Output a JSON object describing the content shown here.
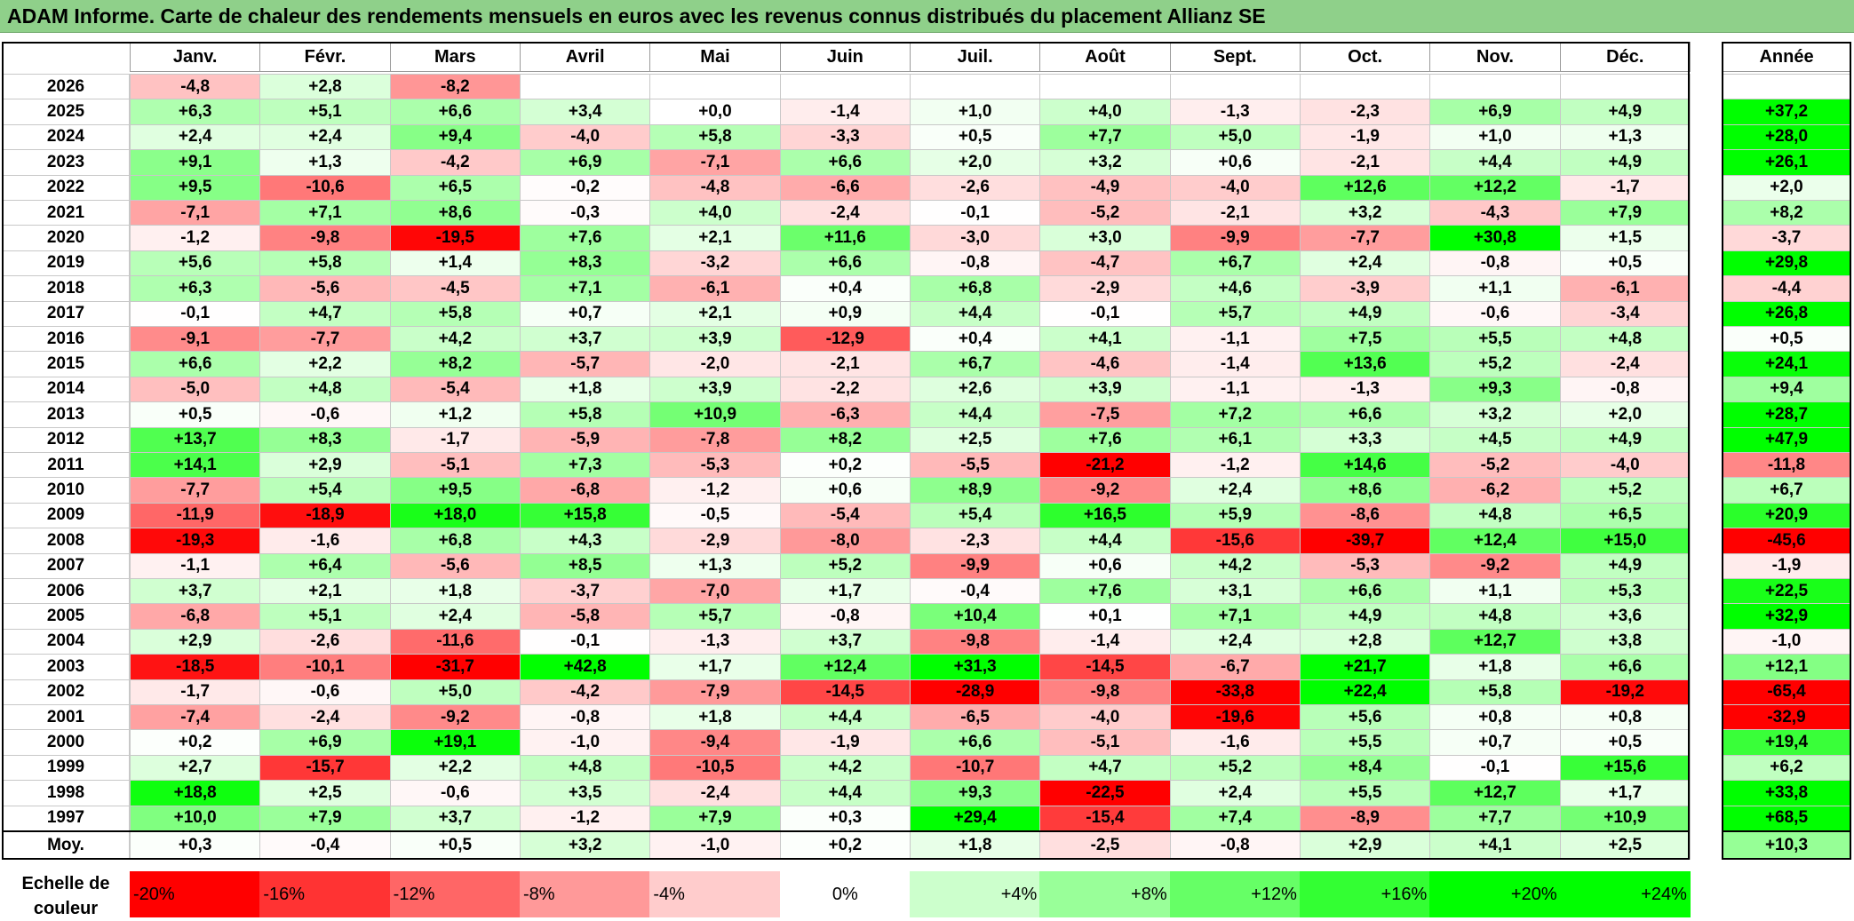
{
  "title": "ADAM Informe. Carte de chaleur des rendements mensuels en euros avec les revenus connus distribués du placement Allianz SE",
  "chart_data": {
    "type": "heatmap",
    "title": "ADAM Informe. Carte de chaleur des rendements mensuels en euros avec les revenus connus distribués du placement Allianz SE",
    "months": [
      "Janv.",
      "Févr.",
      "Mars",
      "Avril",
      "Mai",
      "Juin",
      "Juil.",
      "Août",
      "Sept.",
      "Oct.",
      "Nov.",
      "Déc."
    ],
    "annual_header": "Année",
    "rows": [
      {
        "year": "2026",
        "values": [
          "-4,8",
          "+2,8",
          "-8,2",
          "",
          "",
          "",
          "",
          "",
          "",
          "",
          "",
          ""
        ],
        "annual": ""
      },
      {
        "year": "2025",
        "values": [
          "+6,3",
          "+5,1",
          "+6,6",
          "+3,4",
          "+0,0",
          "-1,4",
          "+1,0",
          "+4,0",
          "-1,3",
          "-2,3",
          "+6,9",
          "+4,9"
        ],
        "annual": "+37,2"
      },
      {
        "year": "2024",
        "values": [
          "+2,4",
          "+2,4",
          "+9,4",
          "-4,0",
          "+5,8",
          "-3,3",
          "+0,5",
          "+7,7",
          "+5,0",
          "-1,9",
          "+1,0",
          "+1,3"
        ],
        "annual": "+28,0"
      },
      {
        "year": "2023",
        "values": [
          "+9,1",
          "+1,3",
          "-4,2",
          "+6,9",
          "-7,1",
          "+6,6",
          "+2,0",
          "+3,2",
          "+0,6",
          "-2,1",
          "+4,4",
          "+4,9"
        ],
        "annual": "+26,1"
      },
      {
        "year": "2022",
        "values": [
          "+9,5",
          "-10,6",
          "+6,5",
          "-0,2",
          "-4,8",
          "-6,6",
          "-2,6",
          "-4,9",
          "-4,0",
          "+12,6",
          "+12,2",
          "-1,7"
        ],
        "annual": "+2,0"
      },
      {
        "year": "2021",
        "values": [
          "-7,1",
          "+7,1",
          "+8,6",
          "-0,3",
          "+4,0",
          "-2,4",
          "-0,1",
          "-5,2",
          "-2,1",
          "+3,2",
          "-4,3",
          "+7,9"
        ],
        "annual": "+8,2"
      },
      {
        "year": "2020",
        "values": [
          "-1,2",
          "-9,8",
          "-19,5",
          "+7,6",
          "+2,1",
          "+11,6",
          "-3,0",
          "+3,0",
          "-9,9",
          "-7,7",
          "+30,8",
          "+1,5"
        ],
        "annual": "-3,7"
      },
      {
        "year": "2019",
        "values": [
          "+5,6",
          "+5,8",
          "+1,4",
          "+8,3",
          "-3,2",
          "+6,6",
          "-0,8",
          "-4,7",
          "+6,7",
          "+2,4",
          "-0,8",
          "+0,5"
        ],
        "annual": "+29,8"
      },
      {
        "year": "2018",
        "values": [
          "+6,3",
          "-5,6",
          "-4,5",
          "+7,1",
          "-6,1",
          "+0,4",
          "+6,8",
          "-2,9",
          "+4,6",
          "-3,9",
          "+1,1",
          "-6,1"
        ],
        "annual": "-4,4"
      },
      {
        "year": "2017",
        "values": [
          "-0,1",
          "+4,7",
          "+5,8",
          "+0,7",
          "+2,1",
          "+0,9",
          "+4,4",
          "-0,1",
          "+5,7",
          "+4,9",
          "-0,6",
          "-3,4"
        ],
        "annual": "+26,8"
      },
      {
        "year": "2016",
        "values": [
          "-9,1",
          "-7,7",
          "+4,2",
          "+3,7",
          "+3,9",
          "-12,9",
          "+0,4",
          "+4,1",
          "-1,1",
          "+7,5",
          "+5,5",
          "+4,8"
        ],
        "annual": "+0,5"
      },
      {
        "year": "2015",
        "values": [
          "+6,6",
          "+2,2",
          "+8,2",
          "-5,7",
          "-2,0",
          "-2,1",
          "+6,7",
          "-4,6",
          "-1,4",
          "+13,6",
          "+5,2",
          "-2,4"
        ],
        "annual": "+24,1"
      },
      {
        "year": "2014",
        "values": [
          "-5,0",
          "+4,8",
          "-5,4",
          "+1,8",
          "+3,9",
          "-2,2",
          "+2,6",
          "+3,9",
          "-1,1",
          "-1,3",
          "+9,3",
          "-0,8"
        ],
        "annual": "+9,4"
      },
      {
        "year": "2013",
        "values": [
          "+0,5",
          "-0,6",
          "+1,2",
          "+5,8",
          "+10,9",
          "-6,3",
          "+4,4",
          "-7,5",
          "+7,2",
          "+6,6",
          "+3,2",
          "+2,0"
        ],
        "annual": "+28,7"
      },
      {
        "year": "2012",
        "values": [
          "+13,7",
          "+8,3",
          "-1,7",
          "-5,9",
          "-7,8",
          "+8,2",
          "+2,5",
          "+7,6",
          "+6,1",
          "+3,3",
          "+4,5",
          "+4,9"
        ],
        "annual": "+47,9"
      },
      {
        "year": "2011",
        "values": [
          "+14,1",
          "+2,9",
          "-5,1",
          "+7,3",
          "-5,3",
          "+0,2",
          "-5,5",
          "-21,2",
          "-1,2",
          "+14,6",
          "-5,2",
          "-4,0"
        ],
        "annual": "-11,8"
      },
      {
        "year": "2010",
        "values": [
          "-7,7",
          "+5,4",
          "+9,5",
          "-6,8",
          "-1,2",
          "+0,6",
          "+8,9",
          "-9,2",
          "+2,4",
          "+8,6",
          "-6,2",
          "+5,2"
        ],
        "annual": "+6,7"
      },
      {
        "year": "2009",
        "values": [
          "-11,9",
          "-18,9",
          "+18,0",
          "+15,8",
          "-0,5",
          "-5,4",
          "+5,4",
          "+16,5",
          "+5,9",
          "-8,6",
          "+4,8",
          "+6,5"
        ],
        "annual": "+20,9"
      },
      {
        "year": "2008",
        "values": [
          "-19,3",
          "-1,6",
          "+6,8",
          "+4,3",
          "-2,9",
          "-8,0",
          "-2,3",
          "+4,4",
          "-15,6",
          "-39,7",
          "+12,4",
          "+15,0"
        ],
        "annual": "-45,6"
      },
      {
        "year": "2007",
        "values": [
          "-1,1",
          "+6,4",
          "-5,6",
          "+8,5",
          "+1,3",
          "+5,2",
          "-9,9",
          "+0,6",
          "+4,2",
          "-5,3",
          "-9,2",
          "+4,9"
        ],
        "annual": "-1,9"
      },
      {
        "year": "2006",
        "values": [
          "+3,7",
          "+2,1",
          "+1,8",
          "-3,7",
          "-7,0",
          "+1,7",
          "-0,4",
          "+7,6",
          "+3,1",
          "+6,6",
          "+1,1",
          "+5,3"
        ],
        "annual": "+22,5"
      },
      {
        "year": "2005",
        "values": [
          "-6,8",
          "+5,1",
          "+2,4",
          "-5,8",
          "+5,7",
          "-0,8",
          "+10,4",
          "+0,1",
          "+7,1",
          "+4,9",
          "+4,8",
          "+3,6"
        ],
        "annual": "+32,9"
      },
      {
        "year": "2004",
        "values": [
          "+2,9",
          "-2,6",
          "-11,6",
          "-0,1",
          "-1,3",
          "+3,7",
          "-9,8",
          "-1,4",
          "+2,4",
          "+2,8",
          "+12,7",
          "+3,8"
        ],
        "annual": "-1,0"
      },
      {
        "year": "2003",
        "values": [
          "-18,5",
          "-10,1",
          "-31,7",
          "+42,8",
          "+1,7",
          "+12,4",
          "+31,3",
          "-14,5",
          "-6,7",
          "+21,7",
          "+1,8",
          "+6,6"
        ],
        "annual": "+12,1"
      },
      {
        "year": "2002",
        "values": [
          "-1,7",
          "-0,6",
          "+5,0",
          "-4,2",
          "-7,9",
          "-14,5",
          "-28,9",
          "-9,8",
          "-33,8",
          "+22,4",
          "+5,8",
          "-19,2"
        ],
        "annual": "-65,4"
      },
      {
        "year": "2001",
        "values": [
          "-7,4",
          "-2,4",
          "-9,2",
          "-0,8",
          "+1,8",
          "+4,4",
          "-6,5",
          "-4,0",
          "-19,6",
          "+5,6",
          "+0,8",
          "+0,8"
        ],
        "annual": "-32,9"
      },
      {
        "year": "2000",
        "values": [
          "+0,2",
          "+6,9",
          "+19,1",
          "-1,0",
          "-9,4",
          "-1,9",
          "+6,6",
          "-5,1",
          "-1,6",
          "+5,5",
          "+0,7",
          "+0,5"
        ],
        "annual": "+19,4"
      },
      {
        "year": "1999",
        "values": [
          "+2,7",
          "-15,7",
          "+2,2",
          "+4,8",
          "-10,5",
          "+4,2",
          "-10,7",
          "+4,7",
          "+5,2",
          "+8,4",
          "-0,1",
          "+15,6"
        ],
        "annual": "+6,2"
      },
      {
        "year": "1998",
        "values": [
          "+18,8",
          "+2,5",
          "-0,6",
          "+3,5",
          "-2,4",
          "+4,4",
          "+9,3",
          "-22,5",
          "+2,4",
          "+5,5",
          "+12,7",
          "+1,7"
        ],
        "annual": "+33,8"
      },
      {
        "year": "1997",
        "values": [
          "+10,0",
          "+7,9",
          "+3,7",
          "-1,2",
          "+7,9",
          "+0,3",
          "+29,4",
          "-15,4",
          "+7,4",
          "-8,9",
          "+7,7",
          "+10,9"
        ],
        "annual": "+68,5"
      }
    ],
    "average_row": {
      "label": "Moy.",
      "values": [
        "+0,3",
        "-0,4",
        "+0,5",
        "+3,2",
        "-1,0",
        "+0,2",
        "+1,8",
        "-2,5",
        "-0,8",
        "+2,9",
        "+4,1",
        "+2,5"
      ],
      "annual": "+10,3"
    },
    "color_scale": {
      "label": "Echelle de couleur",
      "steps": [
        "-20%",
        "-16%",
        "-12%",
        "-8%",
        "-4%",
        "0%",
        "+4%",
        "+8%",
        "+12%",
        "+16%",
        "+20%",
        "+24%"
      ],
      "negative_color": "#ff0000",
      "neutral_color": "#ffffff",
      "positive_color": "#00ff00"
    }
  }
}
